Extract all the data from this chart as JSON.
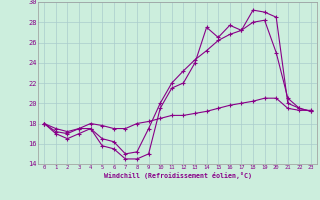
{
  "xlabel": "Windchill (Refroidissement éolien,°C)",
  "background_color": "#cceedd",
  "grid_color": "#aacccc",
  "line_color": "#880088",
  "xlim": [
    -0.5,
    23.5
  ],
  "ylim": [
    14,
    30
  ],
  "xticks": [
    0,
    1,
    2,
    3,
    4,
    5,
    6,
    7,
    8,
    9,
    10,
    11,
    12,
    13,
    14,
    15,
    16,
    17,
    18,
    19,
    20,
    21,
    22,
    23
  ],
  "yticks": [
    14,
    16,
    18,
    20,
    22,
    24,
    26,
    28,
    30
  ],
  "line1_x": [
    0,
    1,
    2,
    3,
    4,
    5,
    6,
    7,
    8,
    9,
    10,
    11,
    12,
    13,
    14,
    15,
    16,
    17,
    18,
    19,
    20,
    21,
    22,
    23
  ],
  "line1_y": [
    18.0,
    17.0,
    16.5,
    17.0,
    17.5,
    15.8,
    15.5,
    14.5,
    14.5,
    15.0,
    19.5,
    21.5,
    22.0,
    24.0,
    27.5,
    26.5,
    27.7,
    27.2,
    29.2,
    29.0,
    28.5,
    20.0,
    19.5,
    19.2
  ],
  "line2_x": [
    0,
    1,
    2,
    3,
    4,
    5,
    6,
    7,
    8,
    9,
    10,
    11,
    12,
    13,
    14,
    15,
    16,
    17,
    18,
    19,
    20,
    21,
    22,
    23
  ],
  "line2_y": [
    18.0,
    17.2,
    17.0,
    17.5,
    17.5,
    16.5,
    16.2,
    15.0,
    15.2,
    17.5,
    20.0,
    22.0,
    23.2,
    24.3,
    25.2,
    26.2,
    26.8,
    27.2,
    28.0,
    28.2,
    25.0,
    20.5,
    19.5,
    19.2
  ],
  "line3_x": [
    0,
    1,
    2,
    3,
    4,
    5,
    6,
    7,
    8,
    9,
    10,
    11,
    12,
    13,
    14,
    15,
    16,
    17,
    18,
    19,
    20,
    21,
    22,
    23
  ],
  "line3_y": [
    18.0,
    17.5,
    17.2,
    17.5,
    18.0,
    17.8,
    17.5,
    17.5,
    18.0,
    18.2,
    18.5,
    18.8,
    18.8,
    19.0,
    19.2,
    19.5,
    19.8,
    20.0,
    20.2,
    20.5,
    20.5,
    19.5,
    19.3,
    19.3
  ]
}
